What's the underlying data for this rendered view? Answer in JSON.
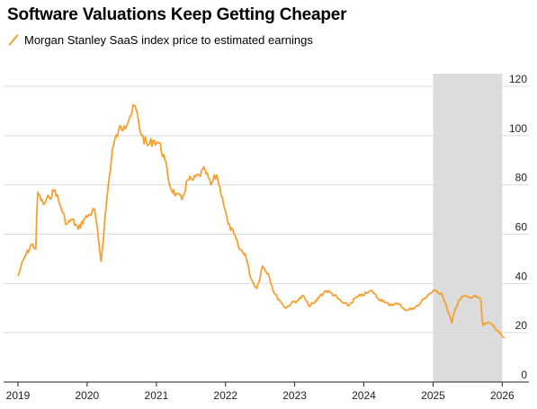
{
  "title": "Software Valuations Keep Getting Cheaper",
  "chart_data": {
    "type": "line",
    "title": "Software Valuations Keep Getting Cheaper",
    "series": [
      {
        "name": "Morgan Stanley SaaS index price to estimated earnings",
        "color": "#f7a031",
        "points": [
          [
            "2019-01-01",
            43
          ],
          [
            "2019-02-01",
            50
          ],
          [
            "2019-03-15",
            56
          ],
          [
            "2019-04-05",
            54
          ],
          [
            "2019-04-15",
            77
          ],
          [
            "2019-05-15",
            72
          ],
          [
            "2019-06-15",
            75
          ],
          [
            "2019-07-15",
            78
          ],
          [
            "2019-08-15",
            71
          ],
          [
            "2019-09-15",
            64
          ],
          [
            "2019-10-15",
            66
          ],
          [
            "2019-11-15",
            62
          ],
          [
            "2019-12-15",
            66
          ],
          [
            "2020-01-15",
            68
          ],
          [
            "2020-02-10",
            70
          ],
          [
            "2020-03-15",
            49
          ],
          [
            "2020-04-15",
            75
          ],
          [
            "2020-05-15",
            95
          ],
          [
            "2020-06-15",
            102
          ],
          [
            "2020-07-15",
            104
          ],
          [
            "2020-08-15",
            108
          ],
          [
            "2020-09-10",
            112
          ],
          [
            "2020-10-15",
            100
          ],
          [
            "2020-11-15",
            96
          ],
          [
            "2020-12-15",
            98
          ],
          [
            "2021-01-15",
            97
          ],
          [
            "2021-02-15",
            90
          ],
          [
            "2021-03-15",
            79
          ],
          [
            "2021-04-15",
            76
          ],
          [
            "2021-05-15",
            74
          ],
          [
            "2021-06-15",
            82
          ],
          [
            "2021-07-15",
            82
          ],
          [
            "2021-08-15",
            84
          ],
          [
            "2021-09-15",
            86
          ],
          [
            "2021-10-15",
            80
          ],
          [
            "2021-11-15",
            84
          ],
          [
            "2021-12-15",
            75
          ],
          [
            "2022-01-15",
            64
          ],
          [
            "2022-02-15",
            60
          ],
          [
            "2022-03-15",
            54
          ],
          [
            "2022-04-15",
            52
          ],
          [
            "2022-05-15",
            42
          ],
          [
            "2022-06-15",
            38
          ],
          [
            "2022-07-15",
            47
          ],
          [
            "2022-08-15",
            44
          ],
          [
            "2022-09-15",
            36
          ],
          [
            "2022-10-15",
            33
          ],
          [
            "2022-11-15",
            30
          ],
          [
            "2022-12-15",
            32
          ],
          [
            "2023-01-15",
            33
          ],
          [
            "2023-02-15",
            35
          ],
          [
            "2023-03-15",
            31
          ],
          [
            "2023-04-15",
            32
          ],
          [
            "2023-05-15",
            35
          ],
          [
            "2023-06-15",
            37
          ],
          [
            "2023-07-15",
            36
          ],
          [
            "2023-08-15",
            34
          ],
          [
            "2023-09-15",
            32
          ],
          [
            "2023-10-15",
            31
          ],
          [
            "2023-11-15",
            34
          ],
          [
            "2023-12-15",
            35
          ],
          [
            "2024-01-15",
            36
          ],
          [
            "2024-02-15",
            37
          ],
          [
            "2024-03-15",
            34
          ],
          [
            "2024-04-15",
            33
          ],
          [
            "2024-05-15",
            31
          ],
          [
            "2024-06-15",
            32
          ],
          [
            "2024-07-15",
            31
          ],
          [
            "2024-08-15",
            29
          ],
          [
            "2024-09-15",
            30
          ],
          [
            "2024-10-15",
            31
          ],
          [
            "2024-11-15",
            34
          ],
          [
            "2024-12-15",
            36
          ],
          [
            "2025-01-15",
            37
          ],
          [
            "2025-02-15",
            36
          ],
          [
            "2025-03-15",
            30
          ],
          [
            "2025-04-10",
            24
          ],
          [
            "2025-04-25",
            29
          ],
          [
            "2025-05-15",
            33
          ],
          [
            "2025-06-15",
            35
          ],
          [
            "2025-07-15",
            34
          ],
          [
            "2025-08-15",
            35
          ],
          [
            "2025-09-10",
            33
          ],
          [
            "2025-09-20",
            23
          ],
          [
            "2025-10-15",
            24
          ],
          [
            "2025-11-15",
            23
          ],
          [
            "2025-12-15",
            20
          ],
          [
            "2026-01-15",
            18
          ]
        ]
      }
    ],
    "shaded_range": {
      "start": "2025-01-01",
      "end": "2026-01-01"
    },
    "x_ticks": [
      "2019",
      "2020",
      "2021",
      "2022",
      "2023",
      "2024",
      "2025",
      "2026"
    ],
    "y_ticks": [
      0,
      20,
      40,
      60,
      80,
      100,
      120
    ],
    "ylim": [
      0,
      120
    ],
    "xlim": [
      "2019-01-01",
      "2026-01-01"
    ],
    "grid": true,
    "xlabel": "",
    "ylabel": "",
    "legend_position": "top-left"
  }
}
